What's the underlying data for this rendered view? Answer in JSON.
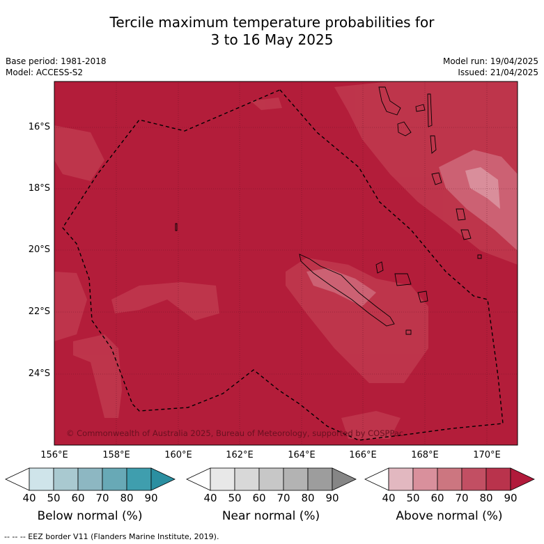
{
  "title": {
    "line1": "Tercile maximum temperature probabilities for",
    "line2": "3 to 16 May 2025"
  },
  "meta_left": {
    "base_period": "Base period: 1981-2018",
    "model": "Model: ACCESS-S2"
  },
  "meta_right": {
    "model_run": "Model run: 19/04/2025",
    "issued": "Issued: 21/04/2025"
  },
  "map": {
    "lat_labels": [
      "16°S",
      "18°S",
      "20°S",
      "22°S",
      "24°S"
    ],
    "lon_labels": [
      "156°E",
      "158°E",
      "160°E",
      "162°E",
      "164°E",
      "166°E",
      "168°E",
      "170°E"
    ],
    "copyright": "© Commonwealth of Australia 2025, Bureau of Meteorology, supported by COSPPac",
    "base_color": "#b31d3a"
  },
  "colorbars": [
    {
      "label": "Below normal (%)",
      "ticks": [
        "40",
        "50",
        "60",
        "70",
        "80",
        "90"
      ],
      "colors": [
        "#ffffff",
        "#cfe4ea",
        "#a9c9d0",
        "#8db7c2",
        "#68a9b6",
        "#3f9eae",
        "#2b8fa1"
      ]
    },
    {
      "label": "Near normal (%)",
      "ticks": [
        "40",
        "50",
        "60",
        "70",
        "80",
        "90"
      ],
      "colors": [
        "#ffffff",
        "#e8e8e8",
        "#d8d8d8",
        "#c7c7c7",
        "#b3b3b3",
        "#9d9d9d",
        "#868686"
      ]
    },
    {
      "label": "Above normal (%)",
      "ticks": [
        "40",
        "50",
        "60",
        "70",
        "80",
        "90"
      ],
      "colors": [
        "#ffffff",
        "#e2b8c0",
        "#d9909c",
        "#cc7680",
        "#c24f63",
        "#b9334c",
        "#b11a3b"
      ]
    }
  ],
  "footer": "--  --  -- EEZ border V11 (Flanders Marine Institute, 2019)."
}
